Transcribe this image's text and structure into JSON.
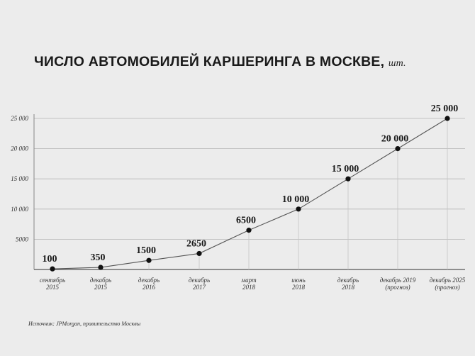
{
  "title": "ЧИСЛО АВТОМОБИЛЕЙ КАРШЕРИНГА В МОСКВЕ,",
  "title_unit": "шт.",
  "source": "Источник: JPMorgan, правительство Москвы",
  "chart_data": {
    "type": "line",
    "title": "ЧИСЛО АВТОМОБИЛЕЙ КАРШЕРИНГА В МОСКВЕ, шт.",
    "categories": [
      [
        "сентябрь",
        "2015"
      ],
      [
        "декабрь",
        "2015"
      ],
      [
        "декабрь",
        "2016"
      ],
      [
        "декабрь",
        "2017"
      ],
      [
        "март",
        "2018"
      ],
      [
        "июнь",
        "2018"
      ],
      [
        "декабрь",
        "2018"
      ],
      [
        "декабрь 2019",
        "(прогноз)"
      ],
      [
        "декабрь 2025",
        "(прогноз)"
      ]
    ],
    "values": [
      100,
      350,
      1500,
      2650,
      6500,
      10000,
      15000,
      20000,
      25000
    ],
    "data_labels": [
      "100",
      "350",
      "1500",
      "2650",
      "6500",
      "10 000",
      "15 000",
      "20 000",
      "25 000"
    ],
    "y_ticks": [
      5000,
      10000,
      15000,
      20000,
      25000
    ],
    "y_tick_labels": [
      "5000",
      "10 000",
      "15 000",
      "20 000",
      "25 000"
    ],
    "ylim": [
      0,
      25000
    ],
    "grid": true,
    "colors": {
      "line": "#555555",
      "point": "#111111",
      "grid": "#b5b5b5",
      "drop": "#c4c4c4"
    }
  }
}
